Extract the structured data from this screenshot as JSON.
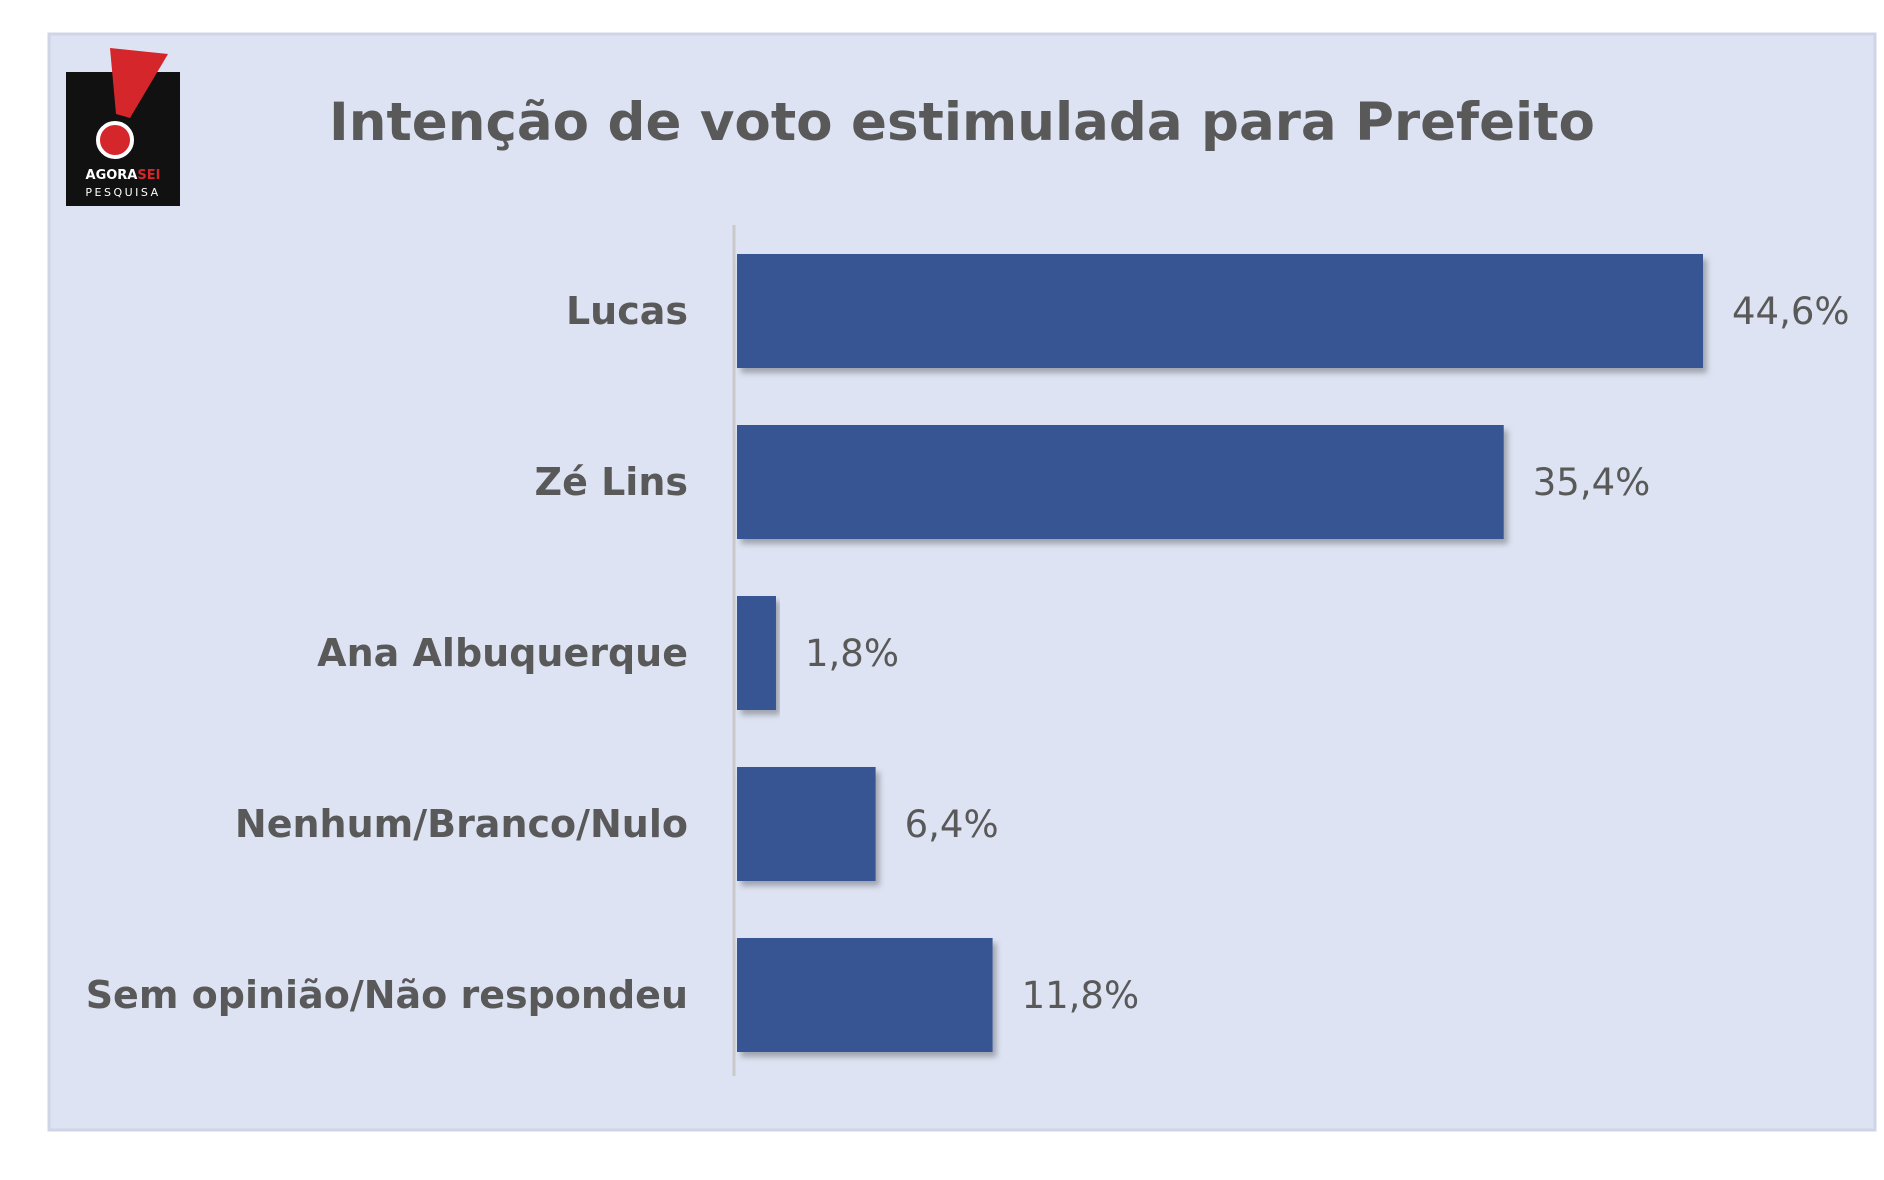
{
  "logo": {
    "line1_a": "AGORA",
    "line1_b": "SEI",
    "line2": "PESQUISA"
  },
  "colors": {
    "panel_background": "#dde3f2",
    "panel_border": "#cfd5e6",
    "bar": "#385593",
    "text": "#595959",
    "axis_line": "#c9c9c9",
    "logo_background": "#111111",
    "logo_red": "#d4262b"
  },
  "chart_data": {
    "type": "bar",
    "orientation": "horizontal",
    "title": "Intenção de voto estimulada para Prefeito",
    "categories": [
      "Lucas",
      "Zé Lins",
      "Ana Albuquerque",
      "Nenhum/Branco/Nulo",
      "Sem opinião/Não respondeu"
    ],
    "values": [
      44.6,
      35.4,
      1.8,
      6.4,
      11.8
    ],
    "value_labels": [
      "44,6%",
      "35,4%",
      "1,8%",
      "6,4%",
      "11,8%"
    ],
    "unit": "%",
    "xlim": [
      0,
      44.6
    ],
    "grid": false,
    "legend": "none",
    "axis_labels_shown": false
  }
}
